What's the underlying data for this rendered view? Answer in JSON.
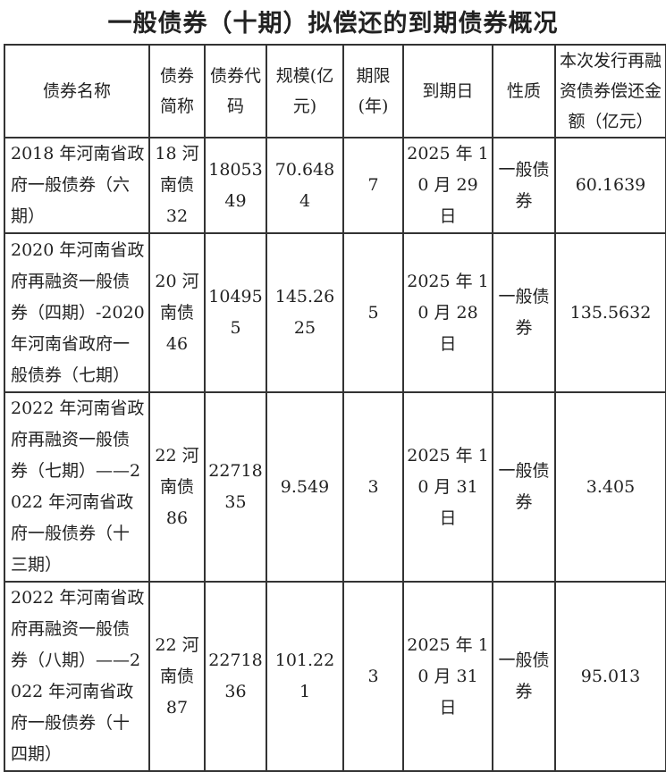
{
  "title": "一般债券（十期）拟偿还的到期债券概况",
  "headers": [
    "债券名称",
    "债券简称",
    "债券代码",
    "规模(亿元)",
    "期限(年)",
    "到期日",
    "性质",
    "本次发行再融资债券偿还金额（亿元）"
  ],
  "rows": [
    [
      "2018 年河南省政府一般债券（六期）",
      "18 河南债 32",
      "1805349",
      "70.6484",
      "7",
      "2025 年 10 月 29 日",
      "一般债券",
      "60.1639"
    ],
    [
      "2020 年河南省政府再融资一般债券（四期）-2020 年河南省政府一般债券（七期）",
      "20 河南债 46",
      "104955",
      "145.2625",
      "5",
      "2025 年 10 月 28 日",
      "一般债券",
      "135.5632"
    ],
    [
      "2022 年河南省政府再融资一般债券（七期）——2022 年河南省政府一般债券（十三期）",
      "22 河南债 86",
      "2271835",
      "9.549",
      "3",
      "2025 年 10 月 31 日",
      "一般债券",
      "3.405"
    ],
    [
      "2022 年河南省政府再融资一般债券（八期）——2022 年河南省政府一般债券（十四期）",
      "22 河南债 87",
      "2271836",
      "101.221",
      "3",
      "2025 年 10 月 31 日",
      "一般债券",
      "95.013"
    ]
  ]
}
